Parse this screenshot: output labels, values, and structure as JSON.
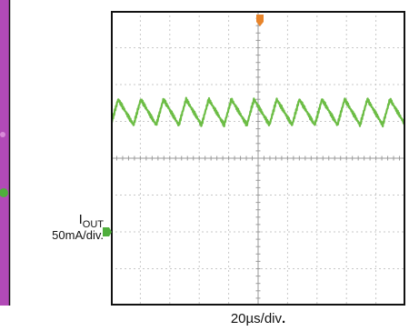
{
  "colors": {
    "screen_bg": "#ffffff",
    "frame": "#111111",
    "grid": "#c8c8c8",
    "trace": "#6cbd45",
    "trigger_marker": "#e8842a",
    "channel_marker": "#4fae3c",
    "left_plot_bg": "#b24ab7",
    "left_plot_accent": "#d98ad8"
  },
  "channel": {
    "name_main": "I",
    "name_sub": "OUT",
    "scale": "50mA/div."
  },
  "timebase": {
    "label": "20µs/div"
  },
  "chart_data": {
    "type": "line",
    "title": "",
    "xlabel": "20µs/div",
    "ylabel": "IOUT 50mA/div.",
    "xlim": [
      0,
      10
    ],
    "ylim": [
      -4,
      4
    ],
    "x_units": "divisions",
    "y_units": "divisions",
    "grid": true,
    "series": [
      {
        "name": "",
        "waveform": "sawtooth",
        "cycles_per_screen": 13,
        "min_div": 0.9,
        "max_div": 1.6
      }
    ]
  }
}
